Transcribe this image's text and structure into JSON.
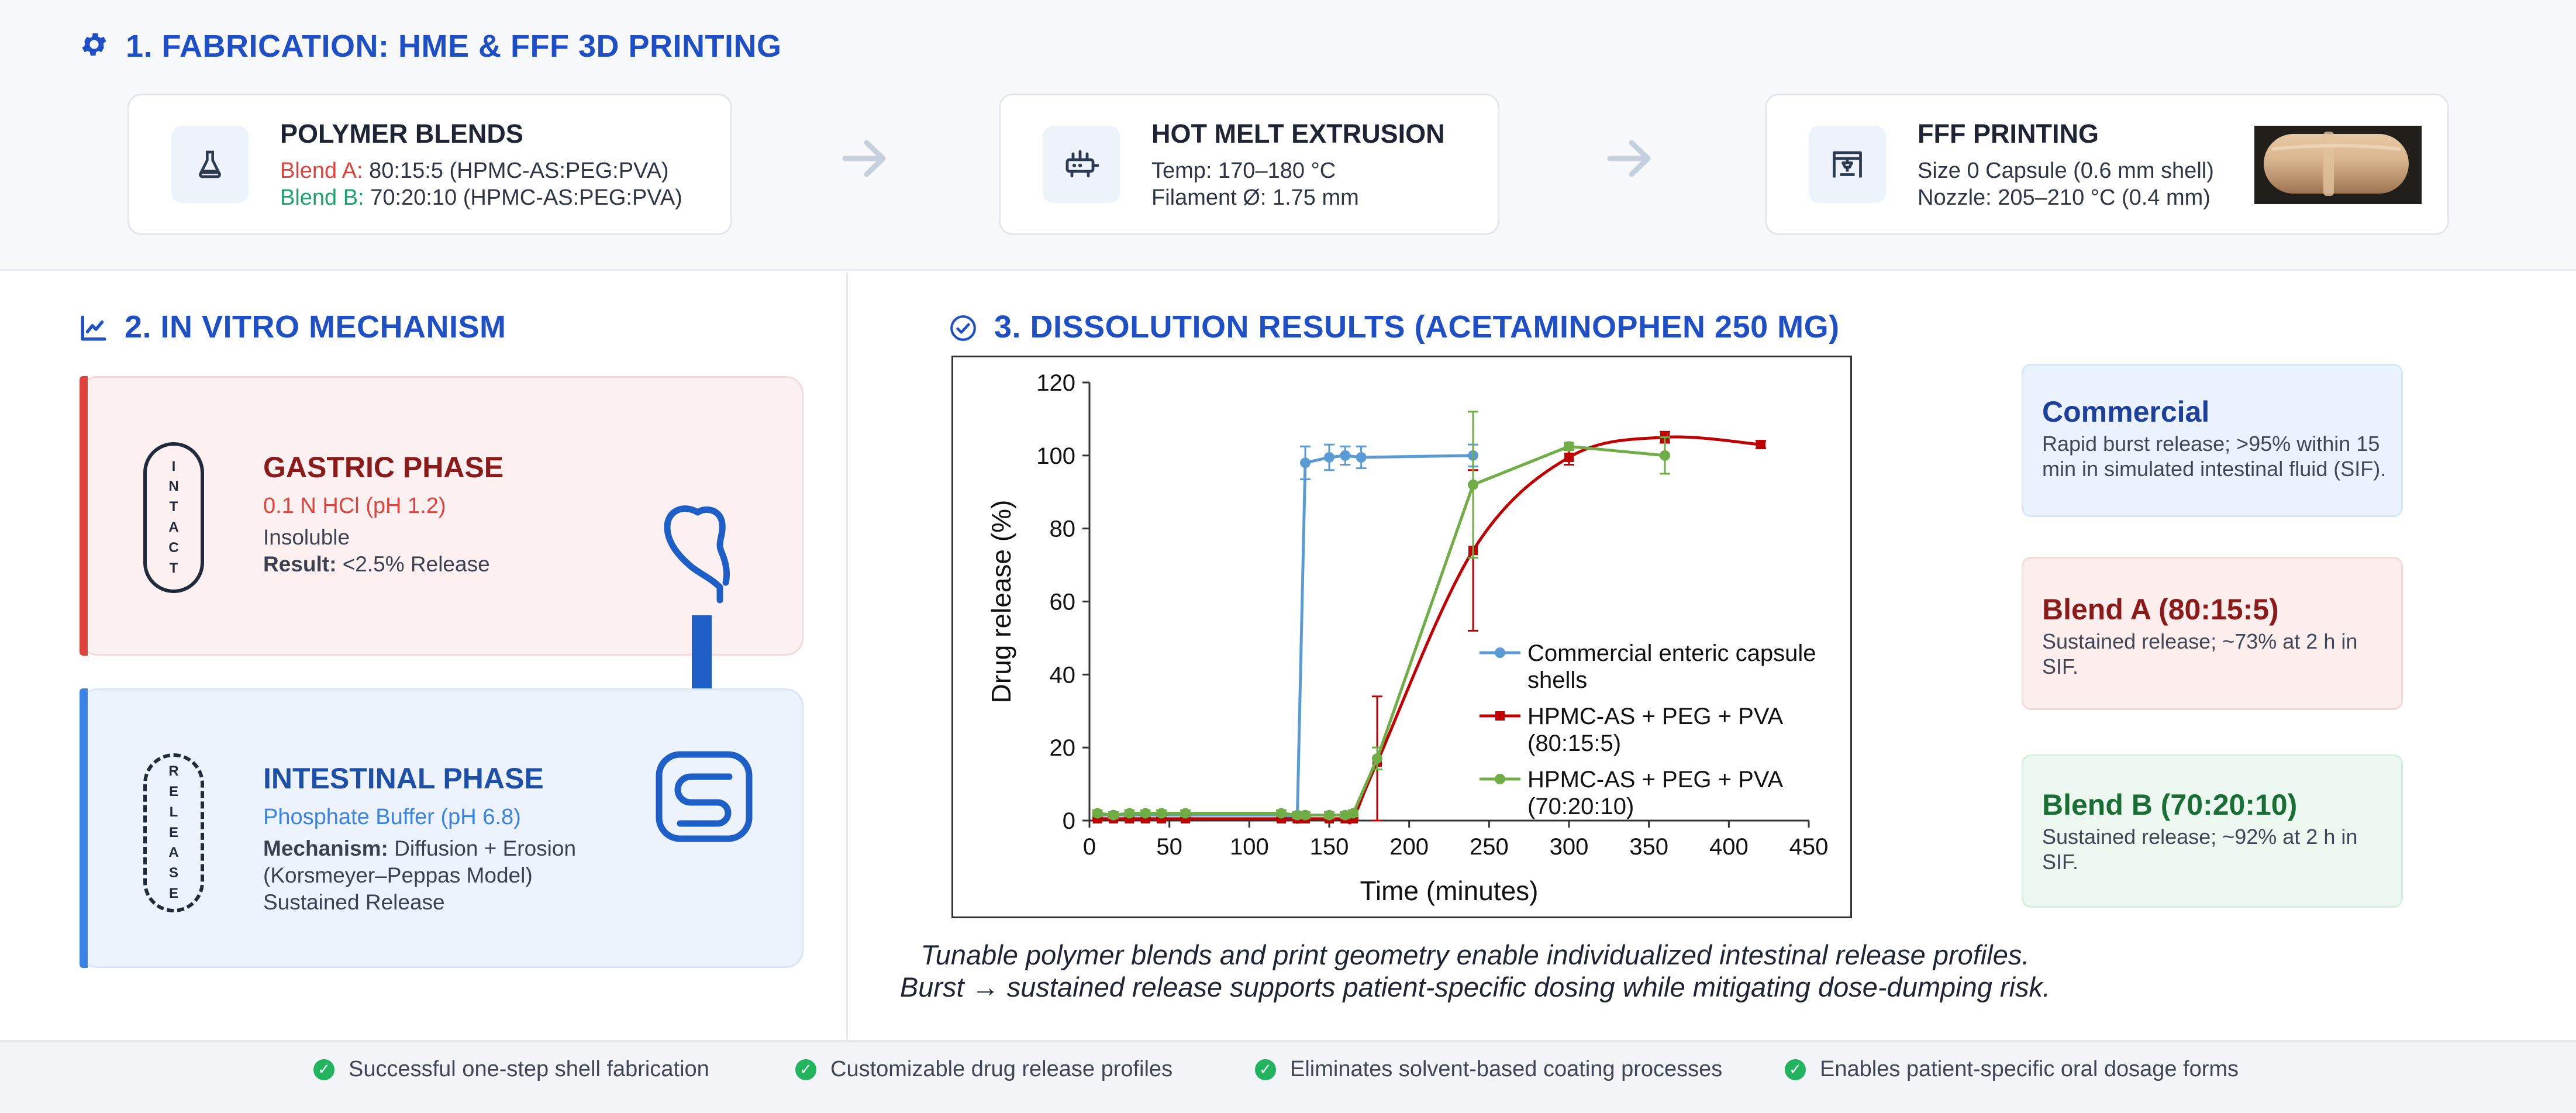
{
  "section1": {
    "title": "1. FABRICATION: HME & FFF 3D PRINTING",
    "icon": "gear-icon",
    "cards": {
      "blends": {
        "title": "POLYMER BLENDS",
        "icon": "flask-icon",
        "blend_a_label": "Blend A:",
        "blend_a_value": "80:15:5 (HPMC-AS:PEG:PVA)",
        "blend_b_label": "Blend B:",
        "blend_b_value": "70:20:10 (HPMC-AS:PEG:PVA)"
      },
      "hme": {
        "title": "HOT MELT EXTRUSION",
        "icon": "extruder-icon",
        "line1": "Temp: 170–180 °C",
        "line2": "Filament Ø: 1.75 mm"
      },
      "fff": {
        "title": "FFF PRINTING",
        "icon": "printer-icon",
        "line1": "Size 0 Capsule (0.6 mm shell)",
        "line2": "Nozzle: 205–210 °C (0.4 mm)"
      }
    },
    "arrow_icon": "arrow-right-icon"
  },
  "section2": {
    "title": "2. IN VITRO MECHANISM",
    "icon": "trend-chart-icon",
    "gastric": {
      "pill_letters": [
        "I",
        "N",
        "T",
        "A",
        "C",
        "T"
      ],
      "title": "GASTRIC PHASE",
      "medium": "0.1 N HCl (pH 1.2)",
      "line1": "Insoluble",
      "result_label": "Result:",
      "result_value": "<2.5% Release",
      "icon": "stomach-icon"
    },
    "intestinal": {
      "pill_letters": [
        "R",
        "E",
        "L",
        "E",
        "A",
        "S",
        "E"
      ],
      "title": "INTESTINAL PHASE",
      "medium": "Phosphate Buffer (pH 6.8)",
      "mech_label": "Mechanism:",
      "mech_value": "Diffusion + Erosion",
      "line2": "(Korsmeyer–Peppas Model)",
      "line3": "Sustained Release",
      "icon": "intestine-icon"
    },
    "flow_arrow_icon": "arrow-down-icon"
  },
  "section3": {
    "title": "3. DISSOLUTION RESULTS (ACETAMINOPHEN 250 MG)",
    "icon": "check-circle-icon",
    "caption_line1": "Tunable polymer blends and print geometry enable individualized intestinal release profiles.",
    "caption_line2": "Burst → sustained release supports patient-specific dosing while mitigating dose-dumping risk.",
    "results": [
      {
        "title": "Commercial",
        "text": "Rapid burst release; >95% within 15 min in simulated intestinal fluid (SIF)."
      },
      {
        "title": "Blend A (80:15:5)",
        "text": "Sustained release; ~73% at 2 h in SIF."
      },
      {
        "title": "Blend B (70:20:10)",
        "text": "Sustained release; ~92% at 2 h in SIF."
      }
    ]
  },
  "chart_data": {
    "type": "line",
    "title": "",
    "xlabel": "Time (minutes)",
    "ylabel": "Drug release (%)",
    "xlim": [
      0,
      450
    ],
    "ylim": [
      0,
      120
    ],
    "xticks": [
      0,
      50,
      100,
      150,
      200,
      250,
      300,
      350,
      400,
      450
    ],
    "yticks": [
      0,
      20,
      40,
      60,
      80,
      100,
      120
    ],
    "grid": false,
    "legend_position": "lower-right",
    "series": [
      {
        "name": "Commercial enteric capsule shells",
        "color": "#5b9bd5",
        "x": [
          5,
          15,
          25,
          35,
          45,
          60,
          120,
          130,
          135,
          150,
          160,
          170,
          240
        ],
        "y": [
          1.5,
          1.5,
          1.5,
          1.5,
          1.5,
          1.5,
          1.5,
          0.5,
          98,
          99.5,
          100,
          99.5,
          100
        ],
        "err": [
          0.6,
          0.6,
          0.6,
          0.6,
          0.6,
          0.6,
          0.6,
          0.5,
          4.5,
          3.5,
          2.5,
          3,
          3
        ]
      },
      {
        "name": "HPMC-AS + PEG + PVA (80:15:5)",
        "color": "#c00000",
        "x": [
          5,
          15,
          25,
          35,
          45,
          60,
          120,
          130,
          135,
          150,
          160,
          165,
          180,
          240,
          300,
          360,
          420
        ],
        "y": [
          0.5,
          0.5,
          0.5,
          0.5,
          0.5,
          0.5,
          0.5,
          0.5,
          0.5,
          0.5,
          0.5,
          0.5,
          16,
          74,
          99.5,
          105,
          103
        ],
        "err": [
          0.3,
          0.3,
          0.3,
          0.3,
          0.3,
          0.3,
          0.3,
          0.3,
          0.3,
          0.3,
          0.3,
          0.3,
          18,
          22,
          2,
          1.5,
          1
        ],
        "smooth": true
      },
      {
        "name": "HPMC-AS + PEG + PVA (70:20:10)",
        "color": "#70ad47",
        "x": [
          5,
          15,
          25,
          35,
          45,
          60,
          120,
          130,
          135,
          150,
          160,
          165,
          180,
          240,
          300,
          360
        ],
        "y": [
          2,
          1.5,
          2,
          2,
          2,
          2,
          2,
          1.5,
          1.5,
          1.5,
          1.5,
          2,
          17,
          92,
          102.5,
          100
        ],
        "err": [
          0.8,
          0.8,
          0.8,
          0.8,
          0.8,
          0.8,
          0.8,
          0.8,
          0.8,
          0.8,
          0.8,
          0.8,
          3,
          20,
          1,
          5
        ]
      }
    ]
  },
  "footer": {
    "items": [
      "Successful one-step shell fabrication",
      "Customizable drug release profiles",
      "Eliminates solvent-based coating processes",
      "Enables patient-specific oral dosage forms"
    ],
    "icon": "check-circle-icon"
  }
}
